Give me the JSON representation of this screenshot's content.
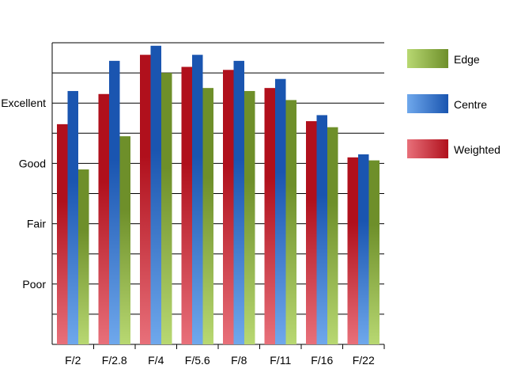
{
  "chart_data": {
    "type": "bar",
    "categories": [
      "F/2",
      "F/2.8",
      "F/4",
      "F/5.6",
      "F/8",
      "F/11",
      "F/16",
      "F/22"
    ],
    "y_tick_labels": [
      {
        "label": "Poor",
        "value": 2
      },
      {
        "label": "Fair",
        "value": 4
      },
      {
        "label": "Good",
        "value": 6
      },
      {
        "label": "Excellent",
        "value": 8
      }
    ],
    "ylim": [
      0,
      10
    ],
    "grid": true,
    "legend_position": "right",
    "series": [
      {
        "name": "Weighted",
        "values": [
          7.3,
          8.3,
          9.6,
          9.2,
          9.1,
          8.5,
          7.4,
          6.2
        ],
        "color_dark": "#b0101c",
        "color_light": "#e8707a"
      },
      {
        "name": "Centre",
        "values": [
          8.4,
          9.4,
          9.9,
          9.6,
          9.4,
          8.8,
          7.6,
          6.3
        ],
        "color_dark": "#1a55b0",
        "color_light": "#6fa8ec"
      },
      {
        "name": "Edge",
        "values": [
          5.8,
          6.9,
          9.0,
          8.5,
          8.4,
          8.1,
          7.2,
          6.1
        ],
        "color_dark": "#6e8f2a",
        "color_light": "#b8d872"
      }
    ],
    "legend_order": [
      "Edge",
      "Centre",
      "Weighted"
    ]
  }
}
